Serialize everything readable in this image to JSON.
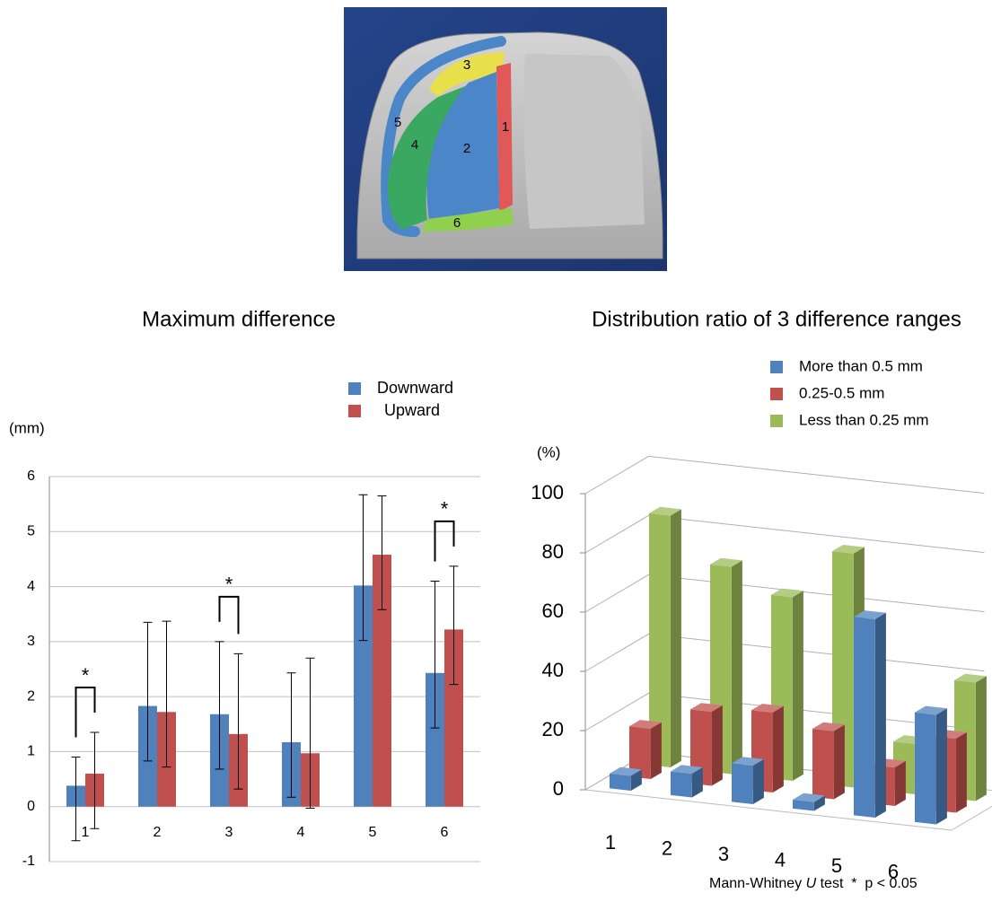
{
  "figure": {
    "region_labels": [
      "1",
      "2",
      "3",
      "4",
      "5",
      "6"
    ]
  },
  "chart_data": [
    {
      "type": "bar",
      "title": "Maximum difference",
      "y_label": "(mm)",
      "categories": [
        "1",
        "2",
        "3",
        "4",
        "5",
        "6"
      ],
      "series": [
        {
          "name": "Downward",
          "color": "#4f81bd",
          "values": [
            0.38,
            1.83,
            1.68,
            1.17,
            4.02,
            2.43
          ],
          "error_plus": [
            0.52,
            1.52,
            1.32,
            1.26,
            1.65,
            1.67
          ],
          "error_minus": [
            1.0,
            1.0,
            1.0,
            1.0,
            1.0,
            1.0
          ]
        },
        {
          "name": "Upward",
          "color": "#c0504d",
          "values": [
            0.6,
            1.72,
            1.32,
            0.97,
            4.58,
            3.22
          ],
          "error_plus": [
            0.75,
            1.65,
            1.46,
            1.73,
            1.07,
            1.15
          ],
          "error_minus": [
            1.0,
            1.0,
            1.0,
            1.0,
            1.0,
            1.0
          ]
        }
      ],
      "significance": [
        "*",
        null,
        "*",
        null,
        null,
        "*"
      ],
      "ylim": [
        -1,
        6
      ],
      "yticks": [
        -1,
        0,
        1,
        2,
        3,
        4,
        5,
        6
      ],
      "grid": true
    },
    {
      "type": "bar3d",
      "title": "Distribution ratio of 3 difference ranges",
      "y_label": "(%)",
      "categories": [
        "1",
        "2",
        "3",
        "4",
        "5",
        "6"
      ],
      "series": [
        {
          "name": "More than 0.5 mm",
          "color": "#4f81bd",
          "values": [
            5,
            8,
            13,
            3,
            67,
            37
          ]
        },
        {
          "name": "0.25-0.5 mm",
          "color": "#c0504d",
          "values": [
            17,
            25,
            27,
            23,
            13,
            25
          ]
        },
        {
          "name": "Less than 0.25 mm",
          "color": "#9bbb59",
          "values": [
            85,
            70,
            62,
            79,
            17,
            40
          ]
        }
      ],
      "ylim": [
        0,
        100
      ],
      "yticks": [
        0,
        20,
        40,
        60,
        80,
        100
      ],
      "grid": true
    }
  ],
  "footnote": {
    "parts": [
      "Mann-Whitney ",
      "U",
      " test  *  p < 0.05"
    ]
  }
}
